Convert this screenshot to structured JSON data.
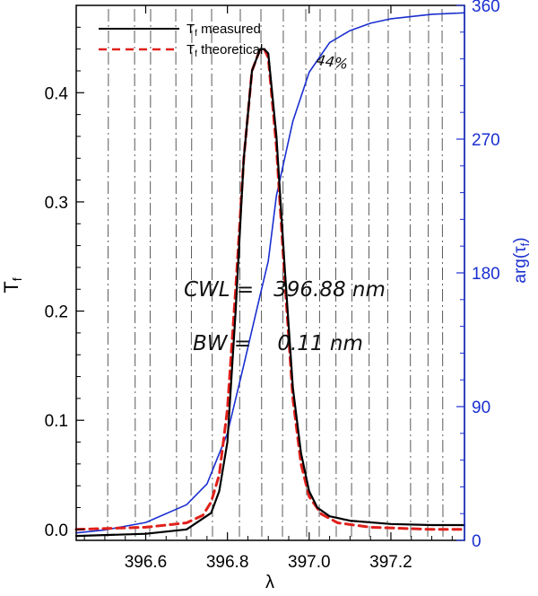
{
  "chart_data": {
    "type": "line",
    "xlabel": "λ",
    "ylabel": "T",
    "ylabel_sub": "f",
    "y2label": "arg(τ",
    "y2label_sub": "f",
    "y2label_close": ")",
    "xlim": [
      396.43,
      397.38
    ],
    "ylim": [
      -0.01,
      0.48
    ],
    "y2lim": [
      0,
      360
    ],
    "xticks": [
      396.6,
      396.8,
      397.0,
      397.2
    ],
    "xtick_labels": [
      "396.6",
      "396.8",
      "397.0",
      "397.2"
    ],
    "yticks": [
      0.0,
      0.1,
      0.2,
      0.3,
      0.4
    ],
    "ytick_labels": [
      "0.0",
      "0.1",
      "0.2",
      "0.3",
      "0.4"
    ],
    "y2ticks": [
      0,
      90,
      180,
      270,
      360
    ],
    "y2tick_labels": [
      "0",
      "90",
      "180",
      "270",
      "360"
    ],
    "legend_position": "top-left",
    "legend": [
      {
        "prefix": "T",
        "sub": "f",
        "suffix": " measured",
        "color": "#000000",
        "style": "solid"
      },
      {
        "prefix": "T",
        "sub": "f",
        "suffix": " theoretical",
        "color": "#e0201b",
        "style": "dashed"
      }
    ],
    "series": [
      {
        "name": "Tf measured",
        "axis": "left",
        "color": "#000000",
        "style": "solid",
        "x": [
          396.43,
          396.6,
          396.7,
          396.76,
          396.78,
          396.8,
          396.82,
          396.84,
          396.86,
          396.88,
          396.89,
          396.9,
          396.92,
          396.94,
          396.96,
          396.98,
          397.0,
          397.02,
          397.05,
          397.1,
          397.2,
          397.3,
          397.38
        ],
        "y": [
          -0.006,
          -0.004,
          0.0,
          0.015,
          0.035,
          0.08,
          0.2,
          0.34,
          0.42,
          0.44,
          0.44,
          0.436,
          0.36,
          0.24,
          0.13,
          0.07,
          0.035,
          0.02,
          0.012,
          0.008,
          0.005,
          0.004,
          0.004
        ]
      },
      {
        "name": "Tf theoretical",
        "axis": "left",
        "color": "#e0201b",
        "style": "dashed",
        "x": [
          396.43,
          396.6,
          396.7,
          396.74,
          396.76,
          396.78,
          396.8,
          396.82,
          396.84,
          396.86,
          396.88,
          396.89,
          396.9,
          396.92,
          396.94,
          396.96,
          396.98,
          397.0,
          397.03,
          397.07,
          397.15,
          397.3,
          397.38
        ],
        "y": [
          0.0,
          0.002,
          0.006,
          0.013,
          0.025,
          0.05,
          0.11,
          0.22,
          0.34,
          0.42,
          0.44,
          0.44,
          0.432,
          0.35,
          0.23,
          0.12,
          0.06,
          0.03,
          0.014,
          0.006,
          0.002,
          0.0,
          0.0
        ]
      },
      {
        "name": "arg(tau_f)",
        "axis": "right",
        "color": "#1a2fd0",
        "style": "solid",
        "x": [
          396.43,
          396.5,
          396.6,
          396.7,
          396.75,
          396.8,
          396.84,
          396.88,
          396.9,
          396.92,
          396.96,
          397.0,
          397.05,
          397.1,
          397.15,
          397.2,
          397.3,
          397.38
        ],
        "y": [
          5,
          7,
          12,
          24,
          38,
          72,
          118,
          165,
          188,
          232,
          282,
          315,
          335,
          343,
          348,
          351,
          354,
          355
        ]
      }
    ],
    "annotations": [
      {
        "text": "44%"
      },
      {
        "text": "CWL =   396.88 nm"
      },
      {
        "text": "BW =    0.11 nm"
      }
    ]
  }
}
